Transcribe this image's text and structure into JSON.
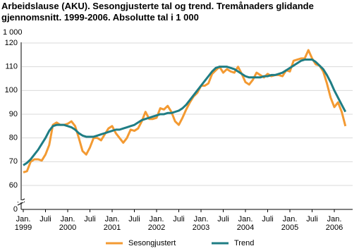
{
  "chart_data": {
    "type": "line",
    "title": "Arbeidslause (AKU). Sesongjusterte tal og trend. Tremånaders glidande gjennomsnitt. 1999-2006. Absolutte tal i 1 000",
    "y_unit_label": "1 000",
    "categories": [
      "Jan. 1999",
      null,
      null,
      null,
      null,
      null,
      "Juli",
      null,
      null,
      null,
      null,
      null,
      "Jan. 2000",
      null,
      null,
      null,
      null,
      null,
      "Juli",
      null,
      null,
      null,
      null,
      null,
      "Jan. 2001",
      null,
      null,
      null,
      null,
      null,
      "Juli",
      null,
      null,
      null,
      null,
      null,
      "Jan. 2002",
      null,
      null,
      null,
      null,
      null,
      "Juli",
      null,
      null,
      null,
      null,
      null,
      "Jan. 2003",
      null,
      null,
      null,
      null,
      null,
      "Juli",
      null,
      null,
      null,
      null,
      null,
      "Jan. 2004",
      null,
      null,
      null,
      null,
      null,
      "Juli",
      null,
      null,
      null,
      null,
      null,
      "Jan. 2005",
      null,
      null,
      null,
      null,
      null,
      "Juli",
      null,
      null,
      null,
      null,
      null,
      "Jan. 2006",
      null,
      null,
      null
    ],
    "series": [
      {
        "name": "Sesongjustert",
        "color": "#f39a32",
        "values": [
          65.5,
          66,
          70,
          71,
          71,
          70.5,
          73,
          77,
          85.5,
          86.5,
          85.5,
          85.5,
          86,
          87,
          85,
          80,
          74.5,
          73,
          76,
          80,
          80,
          79,
          81.5,
          84,
          85,
          82,
          80,
          78,
          80,
          83.5,
          83,
          84,
          87,
          91,
          88,
          88,
          88.5,
          92.5,
          92,
          93.5,
          91,
          87,
          85.5,
          88.5,
          92,
          95,
          97.5,
          99,
          102,
          102,
          103,
          107,
          108.5,
          110,
          107.5,
          109,
          108,
          107.5,
          110,
          107,
          103.5,
          102.5,
          104.5,
          107.5,
          106.5,
          105.5,
          107,
          106,
          106.5,
          106.5,
          106,
          108.5,
          108,
          112.5,
          113,
          113.5,
          113.5,
          117,
          113.5,
          111,
          110.5,
          108,
          103,
          97,
          93,
          95,
          91,
          85
        ]
      },
      {
        "name": "Trend",
        "color": "#1f7d84",
        "values": [
          68.5,
          69.5,
          71,
          73,
          75,
          77.5,
          80,
          83,
          85,
          85.5,
          85.5,
          85.5,
          85,
          84.5,
          83.5,
          82,
          81,
          80.5,
          80.5,
          80.5,
          81,
          81.5,
          82,
          82.5,
          83,
          83.5,
          83.5,
          84,
          84.5,
          85,
          85.5,
          86.5,
          87.5,
          88,
          88.5,
          89,
          89.5,
          90,
          90,
          90.5,
          90.5,
          91,
          91.5,
          92.5,
          94,
          96,
          98,
          100,
          102,
          104,
          106,
          108,
          109.5,
          110,
          110,
          110,
          109.5,
          109,
          108,
          107,
          106,
          105.5,
          105.5,
          105.5,
          105.5,
          106,
          106,
          106.5,
          106.5,
          107,
          107.5,
          108.5,
          109.5,
          110.5,
          111.5,
          112.5,
          113,
          113,
          113,
          112,
          110.5,
          109,
          106.5,
          103.5,
          100,
          97,
          94,
          91
        ]
      }
    ],
    "ylim": [
      0,
      120
    ],
    "y_break": [
      0,
      60
    ],
    "yticks": [
      0,
      60,
      70,
      80,
      90,
      100,
      110,
      120
    ],
    "grid": true
  }
}
